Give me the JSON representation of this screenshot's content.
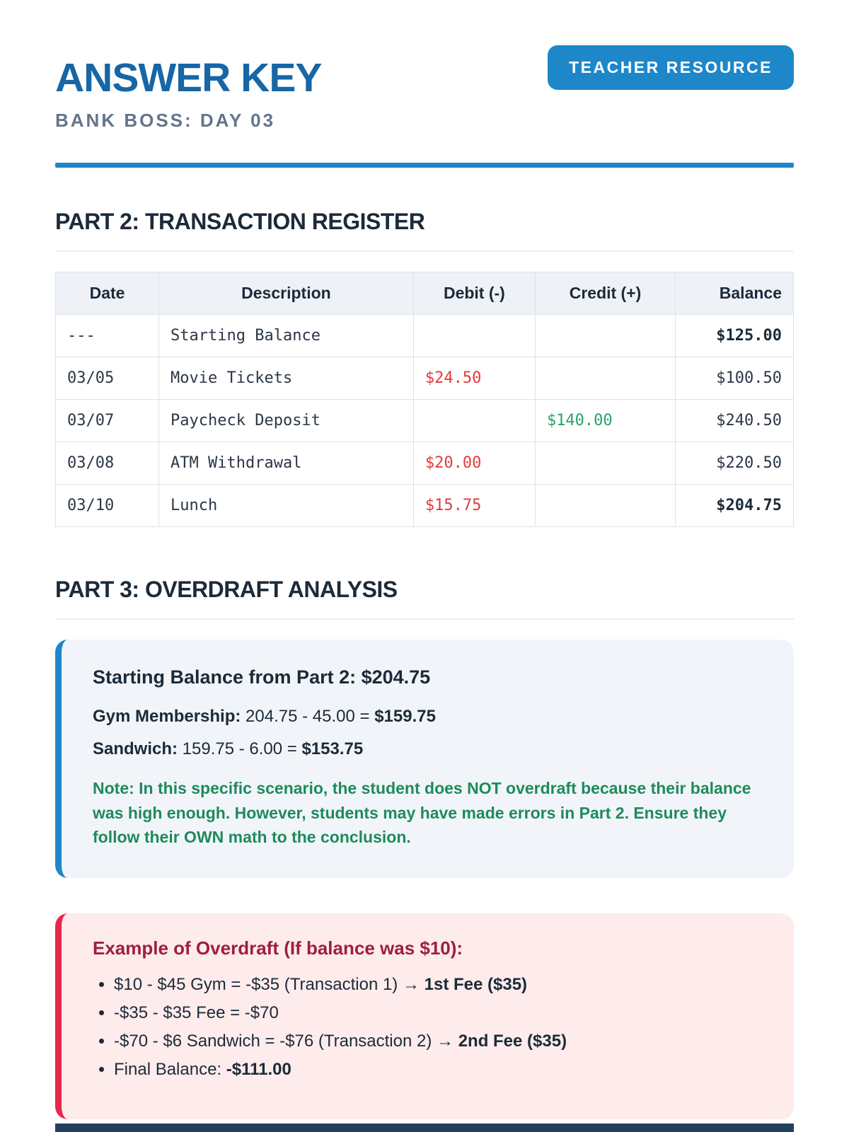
{
  "header": {
    "title": "ANSWER KEY",
    "subtitle": "BANK BOSS: DAY 03",
    "badge": "TEACHER RESOURCE"
  },
  "part2": {
    "heading": "PART 2: TRANSACTION REGISTER",
    "table": {
      "columns": [
        "Date",
        "Description",
        "Debit (-)",
        "Credit (+)",
        "Balance"
      ],
      "rows": [
        {
          "date": "---",
          "description": "Starting Balance",
          "debit": "",
          "credit": "",
          "balance": "$125.00",
          "balance_bold": true
        },
        {
          "date": "03/05",
          "description": "Movie Tickets",
          "debit": "$24.50",
          "credit": "",
          "balance": "$100.50",
          "balance_bold": false
        },
        {
          "date": "03/07",
          "description": "Paycheck Deposit",
          "debit": "",
          "credit": "$140.00",
          "balance": "$240.50",
          "balance_bold": false
        },
        {
          "date": "03/08",
          "description": "ATM Withdrawal",
          "debit": "$20.00",
          "credit": "",
          "balance": "$220.50",
          "balance_bold": false
        },
        {
          "date": "03/10",
          "description": "Lunch",
          "debit": "$15.75",
          "credit": "",
          "balance": "$204.75",
          "balance_bold": true
        }
      ]
    }
  },
  "part3": {
    "heading": "PART 3: OVERDRAFT ANALYSIS",
    "analysis": {
      "starting_line": "Starting Balance from Part 2: $204.75",
      "lines": [
        {
          "label": "Gym Membership:",
          "math": "204.75 - 45.00 =",
          "result": "$159.75"
        },
        {
          "label": "Sandwich:",
          "math": "159.75 - 6.00 =",
          "result": "$153.75"
        }
      ],
      "note": "Note: In this specific scenario, the student does NOT overdraft because their balance was high enough. However, students may have made errors in Part 2. Ensure they follow their OWN math to the conclusion."
    },
    "example": {
      "heading": "Example of Overdraft (If balance was $10):",
      "bullets": [
        {
          "text": "$10 - $45 Gym = -$35 (Transaction 1) → ",
          "bold": "1st Fee ($35)"
        },
        {
          "text": "-$35 - $35 Fee = -$70",
          "bold": ""
        },
        {
          "text": "-$70 - $6 Sandwich = -$76 (Transaction 2) → ",
          "bold": "2nd Fee ($35)"
        },
        {
          "text": "Final Balance: ",
          "bold": "-$111.00"
        }
      ]
    }
  },
  "colors": {
    "accent_blue": "#1d87c9",
    "title_blue": "#1766a6",
    "subtitle_gray": "#64748b",
    "navy": "#1c2a39",
    "debit_red": "#e23b3e",
    "credit_green": "#27a368",
    "note_green": "#1f8a5c",
    "example_red": "#e8254e",
    "example_maroon": "#a01d40",
    "footer_navy": "#24405e"
  }
}
